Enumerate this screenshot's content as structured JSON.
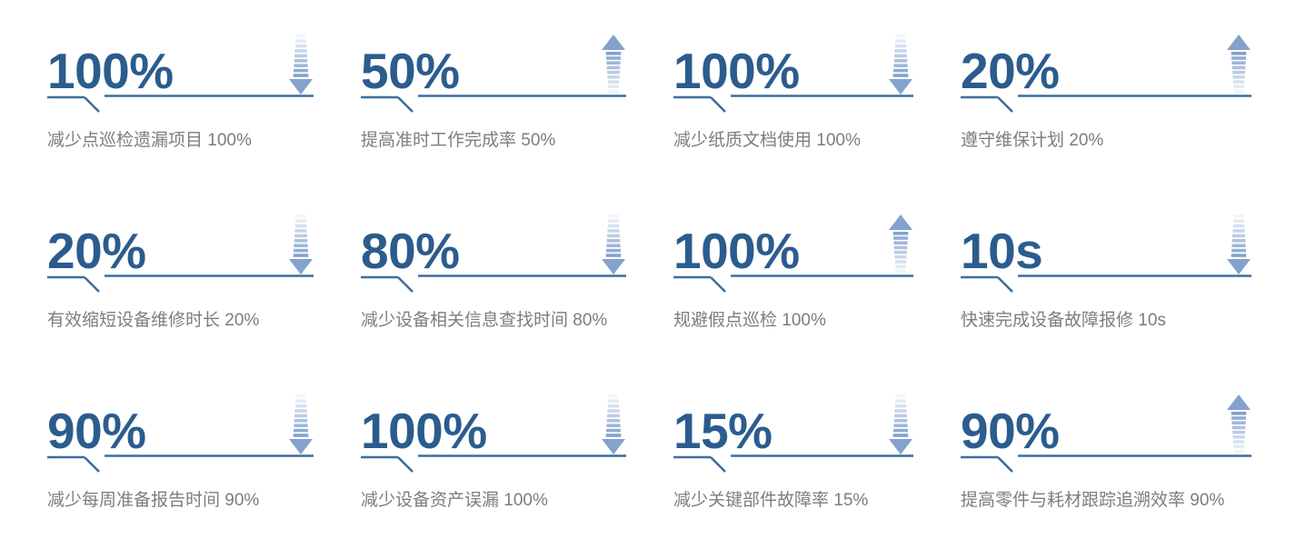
{
  "section": {
    "background": "#ffffff"
  },
  "colors": {
    "value_text": "#2b5c8e",
    "divider_line": "#3f6d9d",
    "description_text": "#7d7d7d",
    "arrow_bar": "#7598c8",
    "arrow_head": "#84a2cc"
  },
  "stats": [
    {
      "value": "100%",
      "trend": "down",
      "label": "减少点巡检遗漏项目 100%"
    },
    {
      "value": "50%",
      "trend": "up",
      "label": "提高准时工作完成率 50%"
    },
    {
      "value": "100%",
      "trend": "down",
      "label": "减少纸质文档使用 100%"
    },
    {
      "value": "20%",
      "trend": "up",
      "label": "遵守维保计划 20%"
    },
    {
      "value": "20%",
      "trend": "down",
      "label": "有效缩短设备维修时长 20%"
    },
    {
      "value": "80%",
      "trend": "down",
      "label": "减少设备相关信息查找时间 80%"
    },
    {
      "value": "100%",
      "trend": "up",
      "label": "规避假点巡检 100%"
    },
    {
      "value": "10s",
      "trend": "down",
      "label": "快速完成设备故障报修 10s"
    },
    {
      "value": "90%",
      "trend": "down",
      "label": "减少每周准备报告时间 90%"
    },
    {
      "value": "100%",
      "trend": "down",
      "label": "减少设备资产误漏 100%"
    },
    {
      "value": "15%",
      "trend": "down",
      "label": "减少关键部件故障率 15%"
    },
    {
      "value": "90%",
      "trend": "up",
      "label": "提高零件与耗材跟踪追溯效率 90%"
    }
  ],
  "chart_data": {
    "type": "table",
    "title": "",
    "columns": [
      "value",
      "trend",
      "label"
    ],
    "rows": [
      [
        "100%",
        "down",
        "减少点巡检遗漏项目 100%"
      ],
      [
        "50%",
        "up",
        "提高准时工作完成率 50%"
      ],
      [
        "100%",
        "down",
        "减少纸质文档使用 100%"
      ],
      [
        "20%",
        "up",
        "遵守维保计划 20%"
      ],
      [
        "20%",
        "down",
        "有效缩短设备维修时长 20%"
      ],
      [
        "80%",
        "down",
        "减少设备相关信息查找时间 80%"
      ],
      [
        "100%",
        "up",
        "规避假点巡检 100%"
      ],
      [
        "10s",
        "down",
        "快速完成设备故障报修 10s"
      ],
      [
        "90%",
        "down",
        "减少每周准备报告时间 90%"
      ],
      [
        "100%",
        "down",
        "减少设备资产误漏 100%"
      ],
      [
        "15%",
        "down",
        "减少关键部件故障率 15%"
      ],
      [
        "90%",
        "up",
        "提高零件与耗材跟踪追溯效率 90%"
      ]
    ]
  }
}
